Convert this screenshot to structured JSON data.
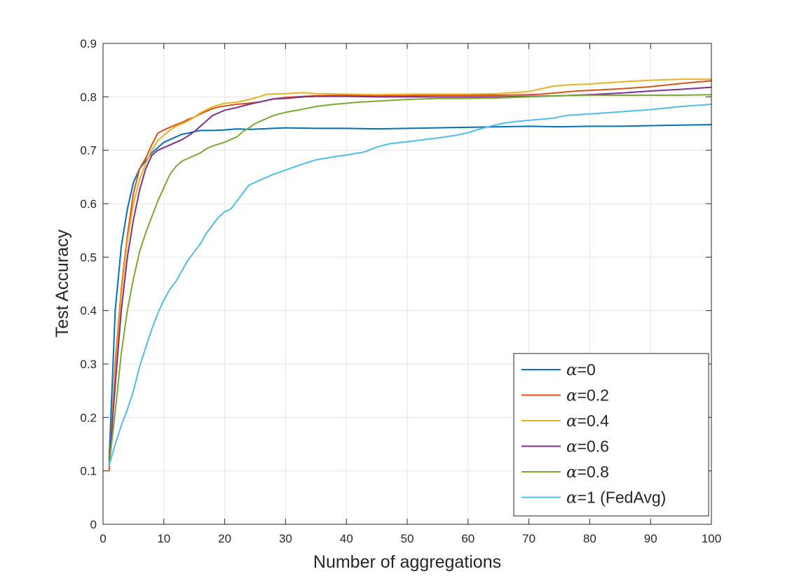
{
  "chart_data": {
    "type": "line",
    "title": "",
    "xlabel": "Number of aggregations",
    "ylabel": "Test Accuracy",
    "xlim": [
      0,
      100
    ],
    "ylim": [
      0,
      0.9
    ],
    "x_ticks": [
      "0",
      "10",
      "20",
      "30",
      "40",
      "50",
      "60",
      "70",
      "80",
      "90",
      "100"
    ],
    "y_ticks": [
      "0",
      "0.1",
      "0.2",
      "0.3",
      "0.4",
      "0.5",
      "0.6",
      "0.7",
      "0.8",
      "0.9"
    ],
    "grid": true,
    "legend_position": "bottom-right",
    "series": [
      {
        "name": "α=0",
        "legend_symbol": "α",
        "legend_rest": "=0",
        "color": "#0072BD",
        "points": [
          [
            1,
            0.12
          ],
          [
            2,
            0.4
          ],
          [
            3,
            0.52
          ],
          [
            4,
            0.59
          ],
          [
            5,
            0.64
          ],
          [
            6,
            0.665
          ],
          [
            7,
            0.68
          ],
          [
            8,
            0.695
          ],
          [
            9,
            0.705
          ],
          [
            10,
            0.715
          ],
          [
            11,
            0.72
          ],
          [
            12,
            0.725
          ],
          [
            13,
            0.73
          ],
          [
            14,
            0.732
          ],
          [
            15,
            0.735
          ],
          [
            16,
            0.737
          ],
          [
            18,
            0.737
          ],
          [
            20,
            0.738
          ],
          [
            22,
            0.74
          ],
          [
            24,
            0.739
          ],
          [
            26,
            0.74
          ],
          [
            28,
            0.741
          ],
          [
            30,
            0.742
          ],
          [
            35,
            0.741
          ],
          [
            40,
            0.741
          ],
          [
            45,
            0.74
          ],
          [
            50,
            0.741
          ],
          [
            55,
            0.742
          ],
          [
            60,
            0.743
          ],
          [
            65,
            0.744
          ],
          [
            70,
            0.745
          ],
          [
            75,
            0.744
          ],
          [
            80,
            0.745
          ],
          [
            85,
            0.745
          ],
          [
            90,
            0.746
          ],
          [
            95,
            0.747
          ],
          [
            100,
            0.748
          ]
        ]
      },
      {
        "name": "α=0.2",
        "legend_symbol": "α",
        "legend_rest": "=0.2",
        "color": "#D95319",
        "points": [
          [
            1,
            0.1
          ],
          [
            2,
            0.3
          ],
          [
            3,
            0.44
          ],
          [
            4,
            0.54
          ],
          [
            5,
            0.62
          ],
          [
            6,
            0.665
          ],
          [
            7,
            0.685
          ],
          [
            8,
            0.71
          ],
          [
            9,
            0.732
          ],
          [
            10,
            0.738
          ],
          [
            11,
            0.743
          ],
          [
            12,
            0.748
          ],
          [
            13,
            0.752
          ],
          [
            14,
            0.758
          ],
          [
            15,
            0.762
          ],
          [
            16,
            0.768
          ],
          [
            17,
            0.773
          ],
          [
            18,
            0.778
          ],
          [
            19,
            0.781
          ],
          [
            20,
            0.783
          ],
          [
            22,
            0.786
          ],
          [
            24,
            0.788
          ],
          [
            26,
            0.791
          ],
          [
            28,
            0.796
          ],
          [
            30,
            0.799
          ],
          [
            35,
            0.802
          ],
          [
            40,
            0.803
          ],
          [
            45,
            0.802
          ],
          [
            50,
            0.802
          ],
          [
            55,
            0.803
          ],
          [
            60,
            0.803
          ],
          [
            65,
            0.803
          ],
          [
            70,
            0.804
          ],
          [
            72,
            0.805
          ],
          [
            75,
            0.808
          ],
          [
            78,
            0.811
          ],
          [
            80,
            0.812
          ],
          [
            85,
            0.815
          ],
          [
            90,
            0.819
          ],
          [
            95,
            0.825
          ],
          [
            100,
            0.83
          ]
        ]
      },
      {
        "name": "α=0.4",
        "legend_symbol": "α",
        "legend_rest": "=0.4",
        "color": "#EDB120",
        "points": [
          [
            1,
            0.11
          ],
          [
            2,
            0.28
          ],
          [
            3,
            0.43
          ],
          [
            4,
            0.53
          ],
          [
            5,
            0.6
          ],
          [
            6,
            0.645
          ],
          [
            7,
            0.675
          ],
          [
            8,
            0.7
          ],
          [
            9,
            0.718
          ],
          [
            10,
            0.728
          ],
          [
            11,
            0.738
          ],
          [
            12,
            0.745
          ],
          [
            13,
            0.75
          ],
          [
            14,
            0.755
          ],
          [
            15,
            0.762
          ],
          [
            16,
            0.77
          ],
          [
            17,
            0.776
          ],
          [
            18,
            0.781
          ],
          [
            19,
            0.785
          ],
          [
            20,
            0.788
          ],
          [
            22,
            0.79
          ],
          [
            24,
            0.795
          ],
          [
            25,
            0.798
          ],
          [
            27,
            0.805
          ],
          [
            30,
            0.806
          ],
          [
            33,
            0.808
          ],
          [
            35,
            0.806
          ],
          [
            40,
            0.805
          ],
          [
            45,
            0.804
          ],
          [
            50,
            0.805
          ],
          [
            55,
            0.805
          ],
          [
            60,
            0.805
          ],
          [
            65,
            0.806
          ],
          [
            70,
            0.81
          ],
          [
            72,
            0.815
          ],
          [
            74,
            0.82
          ],
          [
            76,
            0.822
          ],
          [
            80,
            0.824
          ],
          [
            85,
            0.828
          ],
          [
            90,
            0.831
          ],
          [
            95,
            0.833
          ],
          [
            100,
            0.833
          ]
        ]
      },
      {
        "name": "α=0.6",
        "legend_symbol": "α",
        "legend_rest": "=0.6",
        "color": "#7E2F8E",
        "points": [
          [
            1,
            0.11
          ],
          [
            2,
            0.26
          ],
          [
            3,
            0.4
          ],
          [
            4,
            0.5
          ],
          [
            5,
            0.57
          ],
          [
            6,
            0.625
          ],
          [
            7,
            0.665
          ],
          [
            8,
            0.69
          ],
          [
            9,
            0.7
          ],
          [
            10,
            0.705
          ],
          [
            11,
            0.71
          ],
          [
            12,
            0.715
          ],
          [
            13,
            0.72
          ],
          [
            14,
            0.727
          ],
          [
            15,
            0.735
          ],
          [
            16,
            0.745
          ],
          [
            17,
            0.755
          ],
          [
            18,
            0.765
          ],
          [
            19,
            0.77
          ],
          [
            20,
            0.775
          ],
          [
            22,
            0.78
          ],
          [
            24,
            0.786
          ],
          [
            26,
            0.791
          ],
          [
            28,
            0.796
          ],
          [
            30,
            0.797
          ],
          [
            33,
            0.8
          ],
          [
            35,
            0.801
          ],
          [
            40,
            0.801
          ],
          [
            45,
            0.8
          ],
          [
            50,
            0.8
          ],
          [
            55,
            0.8
          ],
          [
            60,
            0.8
          ],
          [
            65,
            0.8
          ],
          [
            70,
            0.801
          ],
          [
            75,
            0.802
          ],
          [
            80,
            0.804
          ],
          [
            85,
            0.807
          ],
          [
            90,
            0.811
          ],
          [
            95,
            0.814
          ],
          [
            100,
            0.818
          ]
        ]
      },
      {
        "name": "α=0.8",
        "legend_symbol": "α",
        "legend_rest": "=0.8",
        "color": "#77AC30",
        "points": [
          [
            1,
            0.11
          ],
          [
            2,
            0.21
          ],
          [
            3,
            0.32
          ],
          [
            4,
            0.4
          ],
          [
            5,
            0.46
          ],
          [
            6,
            0.51
          ],
          [
            7,
            0.545
          ],
          [
            8,
            0.575
          ],
          [
            9,
            0.605
          ],
          [
            10,
            0.63
          ],
          [
            11,
            0.655
          ],
          [
            12,
            0.67
          ],
          [
            13,
            0.68
          ],
          [
            14,
            0.685
          ],
          [
            15,
            0.69
          ],
          [
            16,
            0.695
          ],
          [
            17,
            0.703
          ],
          [
            18,
            0.708
          ],
          [
            20,
            0.715
          ],
          [
            22,
            0.725
          ],
          [
            23,
            0.735
          ],
          [
            24,
            0.742
          ],
          [
            25,
            0.75
          ],
          [
            26,
            0.755
          ],
          [
            28,
            0.765
          ],
          [
            30,
            0.771
          ],
          [
            32,
            0.775
          ],
          [
            35,
            0.782
          ],
          [
            38,
            0.786
          ],
          [
            40,
            0.788
          ],
          [
            42,
            0.79
          ],
          [
            45,
            0.792
          ],
          [
            50,
            0.795
          ],
          [
            55,
            0.797
          ],
          [
            60,
            0.797
          ],
          [
            65,
            0.798
          ],
          [
            70,
            0.8
          ],
          [
            75,
            0.802
          ],
          [
            80,
            0.803
          ],
          [
            85,
            0.803
          ],
          [
            90,
            0.803
          ],
          [
            95,
            0.803
          ],
          [
            100,
            0.804
          ]
        ]
      },
      {
        "name": "α=1 (FedAvg)",
        "legend_symbol": "α",
        "legend_rest": "=1 (FedAvg)",
        "color": "#4DBEEE",
        "points": [
          [
            1,
            0.11
          ],
          [
            2,
            0.15
          ],
          [
            3,
            0.185
          ],
          [
            4,
            0.215
          ],
          [
            5,
            0.25
          ],
          [
            6,
            0.295
          ],
          [
            7,
            0.33
          ],
          [
            8,
            0.365
          ],
          [
            9,
            0.395
          ],
          [
            10,
            0.42
          ],
          [
            11,
            0.44
          ],
          [
            12,
            0.455
          ],
          [
            13,
            0.475
          ],
          [
            14,
            0.495
          ],
          [
            15,
            0.51
          ],
          [
            16,
            0.525
          ],
          [
            17,
            0.545
          ],
          [
            18,
            0.56
          ],
          [
            19,
            0.575
          ],
          [
            20,
            0.585
          ],
          [
            21,
            0.59
          ],
          [
            22,
            0.605
          ],
          [
            23,
            0.62
          ],
          [
            24,
            0.635
          ],
          [
            26,
            0.645
          ],
          [
            28,
            0.655
          ],
          [
            30,
            0.663
          ],
          [
            33,
            0.675
          ],
          [
            35,
            0.682
          ],
          [
            38,
            0.688
          ],
          [
            40,
            0.691
          ],
          [
            43,
            0.697
          ],
          [
            45,
            0.706
          ],
          [
            47,
            0.712
          ],
          [
            50,
            0.716
          ],
          [
            55,
            0.723
          ],
          [
            58,
            0.728
          ],
          [
            60,
            0.733
          ],
          [
            62,
            0.74
          ],
          [
            64,
            0.746
          ],
          [
            66,
            0.751
          ],
          [
            68,
            0.754
          ],
          [
            70,
            0.756
          ],
          [
            72,
            0.758
          ],
          [
            74,
            0.76
          ],
          [
            76,
            0.765
          ],
          [
            80,
            0.768
          ],
          [
            85,
            0.772
          ],
          [
            90,
            0.776
          ],
          [
            95,
            0.782
          ],
          [
            100,
            0.786
          ]
        ]
      }
    ]
  }
}
